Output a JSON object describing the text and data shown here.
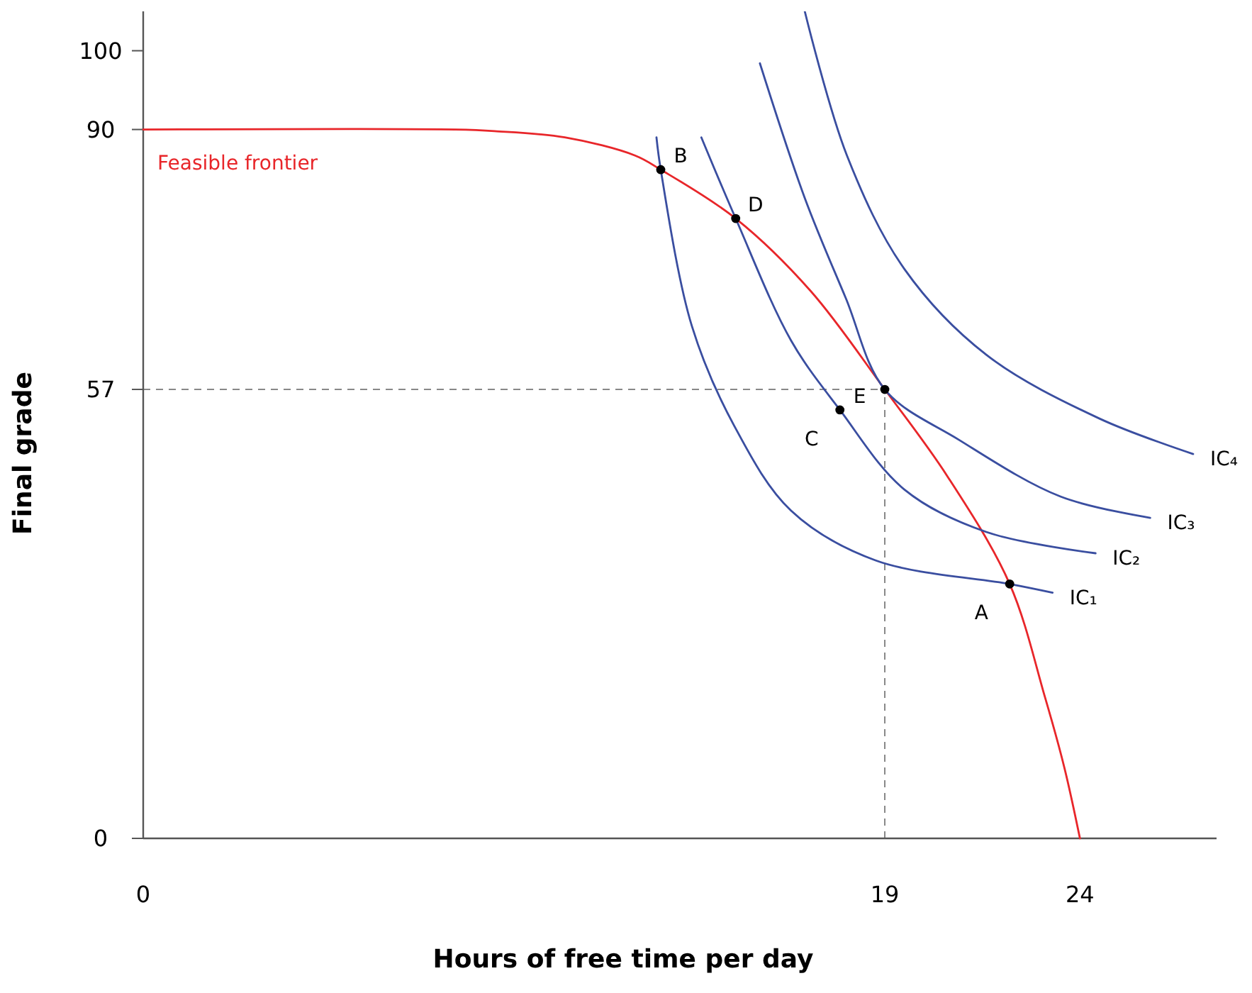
{
  "chart_data": {
    "type": "line",
    "xlabel": "Hours of free time per day",
    "ylabel": "Final grade",
    "xlim": [
      0,
      27.5
    ],
    "ylim": [
      0,
      105
    ],
    "xticks": [
      0,
      19,
      24
    ],
    "yticks": [
      0,
      57,
      90,
      100
    ],
    "grid": false,
    "marker": "none",
    "line_style": "solid",
    "series": [
      {
        "name": "Feasible frontier",
        "color": "#e8262a",
        "x": [
          0,
          8,
          9,
          10.8,
          12.6,
          13.26,
          15.18,
          17.1,
          19,
          20.6,
          22.2,
          23.1,
          23.6,
          24
        ],
        "values": [
          90,
          90,
          89.8,
          89,
          86.7,
          84.9,
          78.7,
          69.5,
          57,
          46,
          32.3,
          18,
          9,
          0
        ]
      },
      {
        "name": "IC₁",
        "color": "#3a4ea0",
        "x": [
          13.15,
          13.26,
          14.06,
          15.14,
          16.6,
          18.76,
          22.2,
          23.3
        ],
        "values": [
          89,
          84.9,
          65,
          52.4,
          41.6,
          35.3,
          32.3,
          31.2
        ]
      },
      {
        "name": "IC₂",
        "color": "#3a4ea0",
        "x": [
          14.3,
          15.18,
          16.6,
          17.85,
          19.5,
          21.6,
          24.4
        ],
        "values": [
          89,
          78.7,
          63.2,
          54.4,
          44.3,
          38.9,
          36.2
        ]
      },
      {
        "name": "IC₃",
        "color": "#3a4ea0",
        "x": [
          15.8,
          16.95,
          18,
          19,
          20.9,
          23.5,
          25.8
        ],
        "values": [
          98.4,
          81.3,
          68.6,
          57,
          50.6,
          43.4,
          40.7
        ]
      },
      {
        "name": "IC₄",
        "color": "#3a4ea0",
        "x": [
          16.95,
          18.03,
          19.5,
          21.6,
          24.5,
          26.9
        ],
        "values": [
          105,
          86.7,
          72.3,
          61.4,
          53.3,
          48.8
        ]
      },
      {
        "type": "scatter",
        "marker": "circle",
        "color": "#000000",
        "x": [
          13.26,
          15.18,
          17.85,
          19,
          22.2
        ],
        "values": [
          84.9,
          78.7,
          54.4,
          57,
          32.3
        ]
      }
    ],
    "ref_lines": [
      {
        "axis": "y",
        "value": 57,
        "color": "#888888",
        "line_style": "dashed"
      },
      {
        "axis": "x",
        "value": 19,
        "color": "#888888",
        "line_style": "dashed"
      }
    ],
    "annotations": [
      {
        "text": "B",
        "x": 13.26,
        "y": 84.9
      },
      {
        "text": "D",
        "x": 15.18,
        "y": 78.7
      },
      {
        "text": "E",
        "x": 17.85,
        "y": 54.4
      },
      {
        "text": "C",
        "x": 17.85,
        "y": 54.4
      },
      {
        "text": "A",
        "x": 22.2,
        "y": 32.3
      }
    ]
  }
}
